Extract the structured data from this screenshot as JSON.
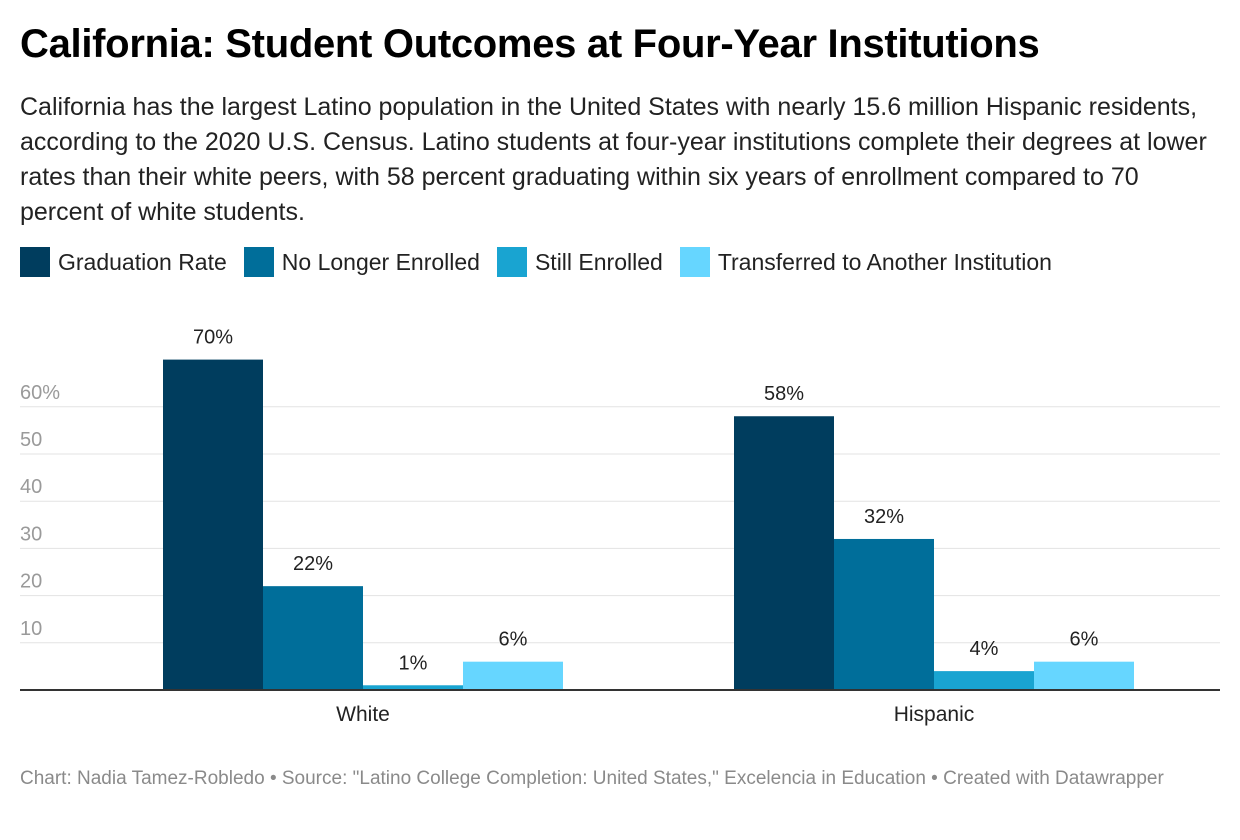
{
  "title": "California: Student Outcomes at Four-Year Institutions",
  "description": "California has the largest Latino population in the United States with nearly 15.6 million Hispanic residents, according to the 2020 U.S. Census. Latino students at four-year institutions complete their degrees at lower rates than their white peers, with 58 percent graduating within six years of enrollment compared to 70 percent of white students.",
  "legend": [
    {
      "label": "Graduation Rate",
      "color": "#003d5e"
    },
    {
      "label": "No Longer Enrolled",
      "color": "#006e9a"
    },
    {
      "label": "Still Enrolled",
      "color": "#19a4d1"
    },
    {
      "label": "Transferred to Another Institution",
      "color": "#66d6ff"
    }
  ],
  "footer": "Chart: Nadia Tamez-Robledo • Source: \"Latino College Completion: United States,\" Excelencia in Education • Created with Datawrapper",
  "chart_data": {
    "type": "bar",
    "title": "California: Student Outcomes at Four-Year Institutions",
    "categories": [
      "White",
      "Hispanic"
    ],
    "series": [
      {
        "name": "Graduation Rate",
        "values": [
          70,
          58
        ],
        "labels": [
          "70%",
          "58%"
        ]
      },
      {
        "name": "No Longer Enrolled",
        "values": [
          22,
          32
        ],
        "labels": [
          "22%",
          "32%"
        ]
      },
      {
        "name": "Still Enrolled",
        "values": [
          1,
          4
        ],
        "labels": [
          "1%",
          "4%"
        ]
      },
      {
        "name": "Transferred to Another Institution",
        "values": [
          6,
          6
        ],
        "labels": [
          "6%",
          "6%"
        ]
      }
    ],
    "yticks": [
      10,
      20,
      30,
      40,
      50,
      60
    ],
    "ytick_labels": [
      "10",
      "20",
      "30",
      "40",
      "50",
      "60%"
    ],
    "ylim": [
      0,
      70
    ],
    "xlabel": "",
    "ylabel": "",
    "grid": true,
    "legend_position": "top-left"
  }
}
